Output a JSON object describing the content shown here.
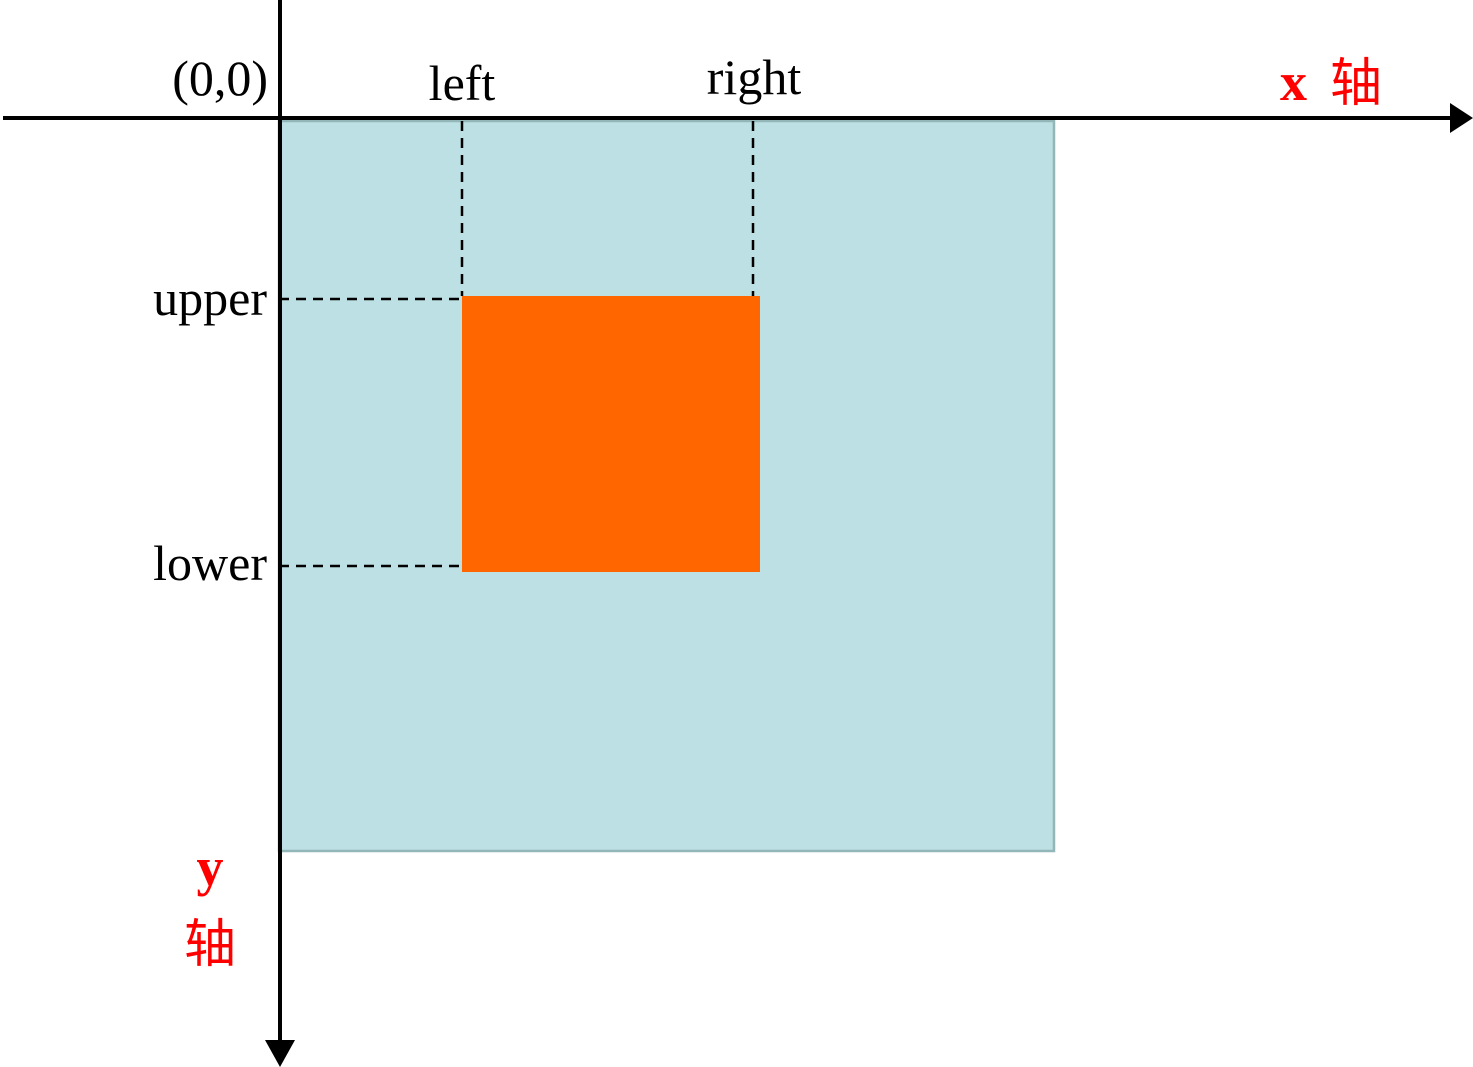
{
  "colors": {
    "canvas_fill": "#bce0e3",
    "canvas_border": "#93b6b8",
    "box_fill": "#ff6600",
    "axis_color": "#000000",
    "axis_label_color": "#ff0000",
    "text_color": "#000000"
  },
  "origin_label": "(0,0)",
  "labels": {
    "left": "left",
    "right": "right",
    "upper": "upper",
    "lower": "lower"
  },
  "x_axis": {
    "letter": "x",
    "word": "轴"
  },
  "y_axis": {
    "letter": "y",
    "word": "轴"
  }
}
